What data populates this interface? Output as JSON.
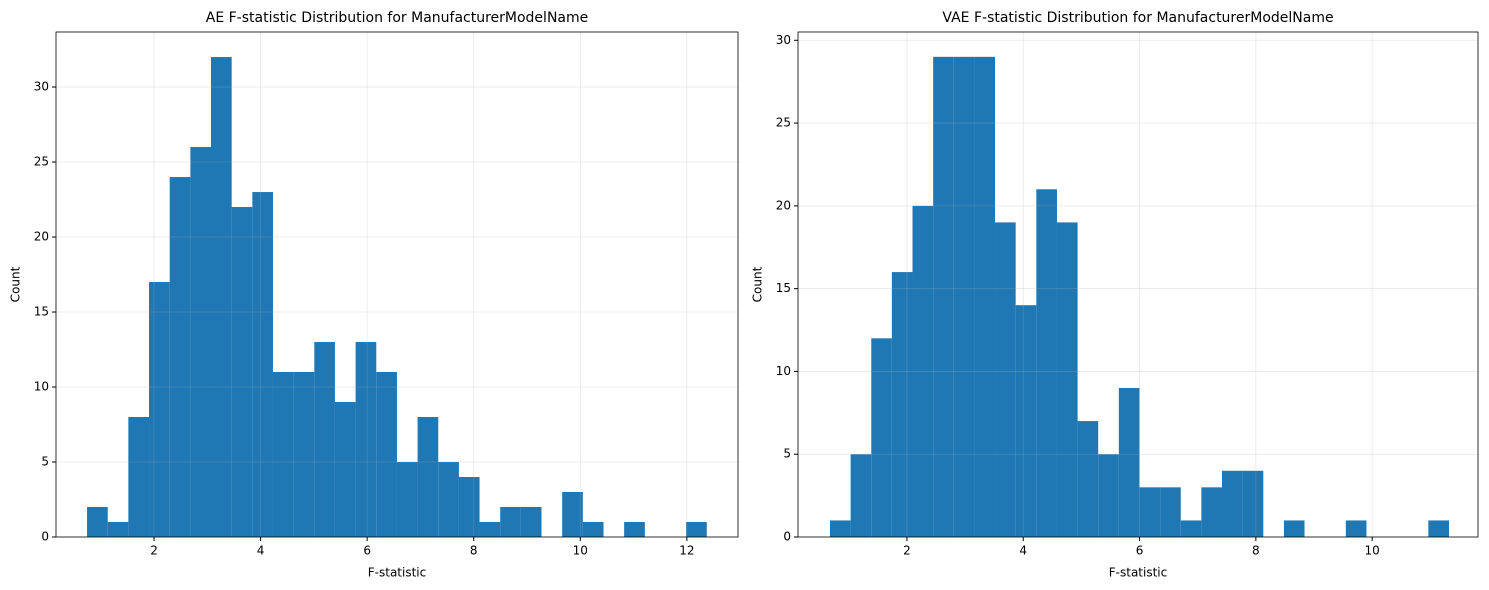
{
  "chart_data": [
    {
      "type": "histogram",
      "title": "AE F-statistic Distribution for ManufacturerModelName",
      "xlabel": "F-statistic",
      "ylabel": "Count",
      "bins": [
        0.743,
        1.131,
        1.518,
        1.906,
        2.294,
        2.682,
        3.069,
        3.457,
        3.845,
        4.232,
        4.62,
        5.008,
        5.395,
        5.783,
        6.171,
        6.559,
        6.946,
        7.334,
        7.722,
        8.109,
        8.497,
        8.885,
        9.272,
        9.66,
        10.048,
        10.436,
        10.823,
        11.211,
        11.599,
        11.986,
        12.374
      ],
      "values": [
        2,
        1,
        8,
        17,
        24,
        26,
        32,
        22,
        23,
        11,
        11,
        13,
        9,
        13,
        11,
        5,
        8,
        5,
        4,
        1,
        2,
        2,
        0,
        3,
        1,
        0,
        1,
        0,
        0,
        1
      ],
      "color": "#1f77b4",
      "xlim": [
        0.16,
        12.96
      ],
      "ylim": [
        0,
        33.67
      ],
      "xticks": [
        2,
        4,
        6,
        8,
        10,
        12
      ],
      "yticks": [
        0,
        5,
        10,
        15,
        20,
        25,
        30
      ],
      "grid": true
    },
    {
      "type": "histogram",
      "title": "VAE F-statistic Distribution for ManufacturerModelName",
      "xlabel": "F-statistic",
      "ylabel": "Count",
      "bins": [
        0.677,
        1.032,
        1.387,
        1.741,
        2.096,
        2.451,
        2.806,
        3.161,
        3.515,
        3.87,
        4.225,
        4.58,
        4.935,
        5.289,
        5.644,
        5.999,
        6.354,
        6.709,
        7.063,
        7.418,
        7.773,
        8.128,
        8.483,
        8.837,
        9.192,
        9.547,
        9.902,
        10.257,
        10.611,
        10.966,
        11.321
      ],
      "values": [
        1,
        5,
        12,
        16,
        20,
        29,
        29,
        29,
        19,
        14,
        21,
        19,
        7,
        5,
        9,
        3,
        3,
        1,
        3,
        4,
        4,
        0,
        1,
        0,
        0,
        1,
        0,
        0,
        0,
        1
      ],
      "color": "#1f77b4",
      "xlim": [
        0.127,
        11.82
      ],
      "ylim": [
        0,
        30.5
      ],
      "xticks": [
        2,
        4,
        6,
        8,
        10
      ],
      "yticks": [
        0,
        5,
        10,
        15,
        20,
        25,
        30
      ],
      "grid": true
    }
  ]
}
